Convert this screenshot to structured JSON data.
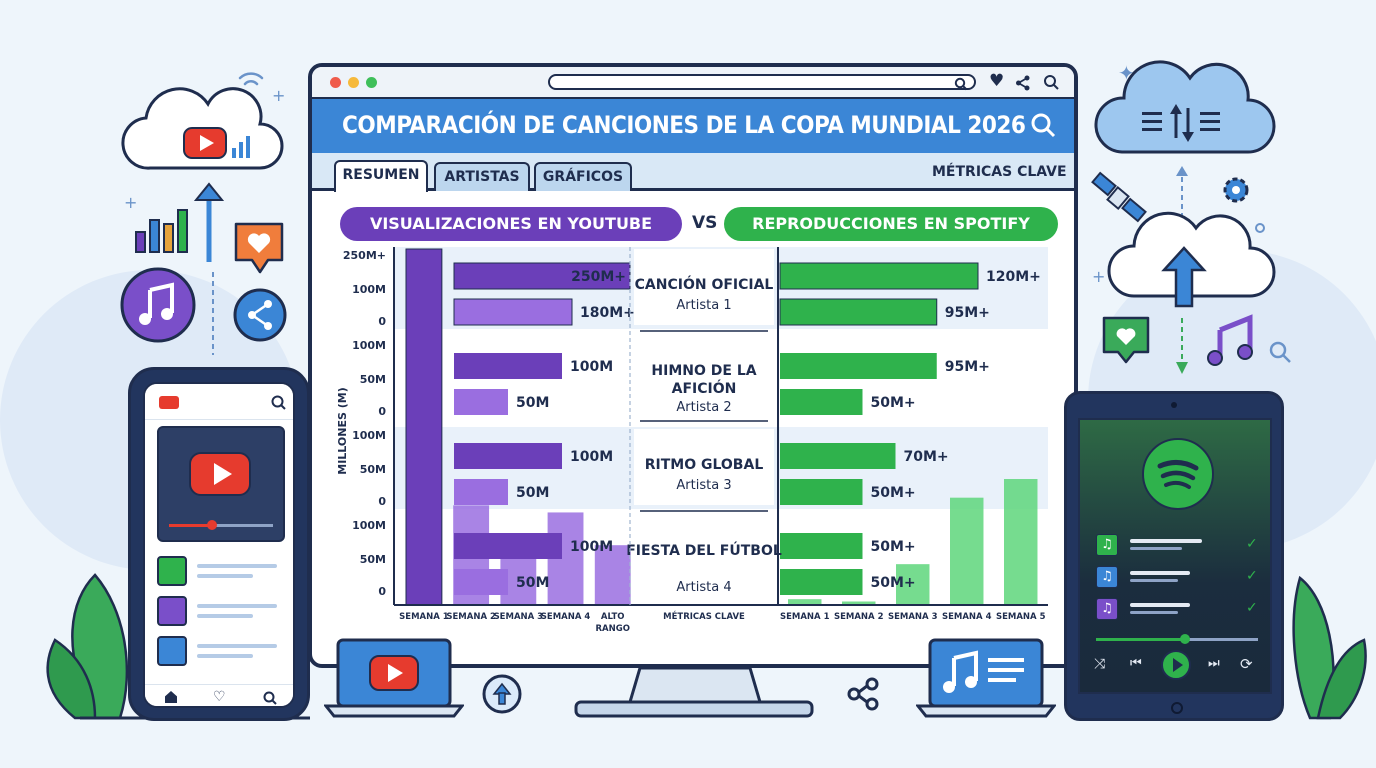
{
  "window": {
    "title": "COMPARACIÓN DE CANCIONES DE LA COPA MUNDIAL 2026",
    "tabs": [
      "RESUMEN",
      "ARTISTAS",
      "GRÁFICOS"
    ],
    "right_label": "MÉTRICAS CLAVE"
  },
  "legend": {
    "left": "VISUALIZACIONES EN YOUTUBE",
    "vs": "VS",
    "right": "REPRODUCCIONES EN SPOTIFY"
  },
  "colors": {
    "youtube": "#6b3fb9",
    "youtube_light": "#9a6ee0",
    "spotify": "#2fb24c",
    "spotify_light": "#5ed67b",
    "banner": "#3b86d6"
  },
  "chart_data": {
    "type": "bar",
    "ylabel": "MILLONES (M)",
    "songs": [
      {
        "name": "CANCIÓN OFICIAL",
        "artist": "Artista 1",
        "youtube_values": [
          250,
          180
        ],
        "youtube_labels": [
          "250M+",
          "180M+"
        ],
        "spotify_values": [
          120,
          95
        ],
        "spotify_labels": [
          "120M+",
          "95M+"
        ],
        "y_ticks": [
          "250M+",
          "100M",
          "0"
        ]
      },
      {
        "name": "HIMNO DE LA AFICIÓN",
        "artist": "Artista 2",
        "youtube_values": [
          100,
          50
        ],
        "youtube_labels": [
          "100M",
          "50M"
        ],
        "spotify_values": [
          95,
          50
        ],
        "spotify_labels": [
          "95M+",
          "50M+"
        ],
        "y_ticks": [
          "100M",
          "50M",
          "0"
        ]
      },
      {
        "name": "RITMO GLOBAL",
        "artist": "Artista 3",
        "youtube_values": [
          100,
          50
        ],
        "youtube_labels": [
          "100M",
          "50M"
        ],
        "spotify_values": [
          70,
          50
        ],
        "spotify_labels": [
          "70M+",
          "50M+"
        ],
        "y_ticks": [
          "100M",
          "50M",
          "0"
        ]
      },
      {
        "name": "FIESTA DEL FÚTBOL",
        "artist": "Artista 4",
        "youtube_values": [
          100,
          50
        ],
        "youtube_labels": [
          "100M",
          "50M"
        ],
        "spotify_values": [
          50,
          50
        ],
        "spotify_labels": [
          "50M+",
          "50M+"
        ],
        "y_ticks": [
          "100M",
          "50M",
          "0"
        ]
      }
    ],
    "youtube_weekly": {
      "categories": [
        "SEMANA 1",
        "SEMANA 2",
        "SEMANA 3",
        "SEMANA 4",
        "ALTO RANGO"
      ],
      "values": [
        250,
        70,
        50,
        65,
        42
      ]
    },
    "spotify_weekly": {
      "categories": [
        "SEMANA 1",
        "SEMANA 2",
        "SEMANA 3",
        "SEMANA 4",
        "SEMANA 5"
      ],
      "values": [
        5,
        3,
        35,
        92,
        108
      ]
    },
    "center_axis_label": "MÉTRICAS CLAVE"
  }
}
